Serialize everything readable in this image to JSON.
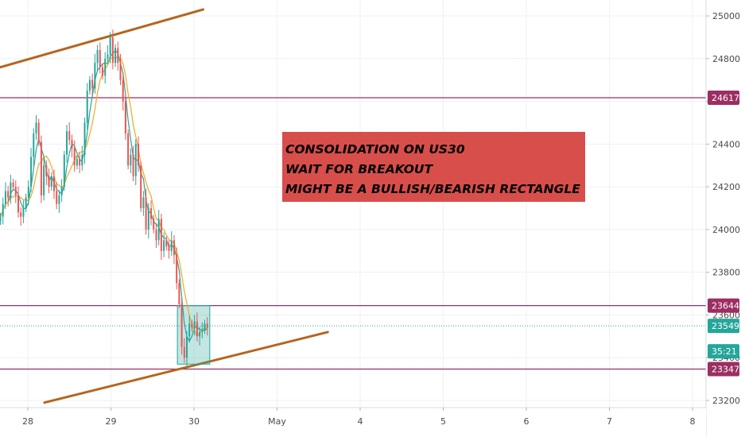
{
  "chart_data": {
    "type": "candlestick",
    "instrument": "US30",
    "x_tick_labels": [
      "28",
      "29",
      "30",
      "May",
      "4",
      "5",
      "6",
      "7",
      "8"
    ],
    "y_tick_labels": [
      23200,
      23400,
      23600,
      23800,
      24000,
      24200,
      24400,
      24600,
      24800,
      25000
    ],
    "ylim": [
      23150,
      25080
    ],
    "grid": true,
    "price_levels": [
      {
        "value": 24617,
        "label": "24617",
        "color": "#9c2e62"
      },
      {
        "value": 23644,
        "label": "23644",
        "color": "#9c2e62"
      },
      {
        "value": 23347,
        "label": "23347",
        "color": "#9c2e62"
      }
    ],
    "last_price": {
      "value": 23549,
      "label": "23549",
      "color": "#26a69a"
    },
    "countdown": {
      "label": "35:21",
      "value_level": 23430,
      "color": "#26a69a"
    },
    "channel_lines": [
      {
        "name": "upper",
        "from": {
          "x": -0.33,
          "y": 24760
        },
        "to": {
          "x": 2.11,
          "y": 25030
        },
        "color": "#b5651d"
      },
      {
        "name": "lower",
        "from": {
          "x": 0.2,
          "y": 23190
        },
        "to": {
          "x": 3.61,
          "y": 23520
        },
        "color": "#b5651d"
      }
    ],
    "rectangle": {
      "x0": 1.8,
      "x1": 2.19,
      "y0": 23370,
      "y1": 23644,
      "color": "#26a69a"
    },
    "annotation": {
      "lines": [
        "CONSOLIDATION ON US30",
        "WAIT FOR BREAKOUT",
        "MIGHT BE A BULLISH/BEARISH RECTANGLE"
      ],
      "background": "#d64541"
    },
    "colors": {
      "up": "#26a69a",
      "down": "#ef5350",
      "ma_fast": "#26a69a",
      "ma_slow": "#f5a623"
    },
    "candles_close": [
      24060,
      24120,
      24180,
      24150,
      24220,
      24200,
      24160,
      24080,
      24060,
      24100,
      24150,
      24200,
      24340,
      24450,
      24500,
      24410,
      24160,
      24300,
      24250,
      24200,
      24250,
      24180,
      24120,
      24160,
      24200,
      24350,
      24460,
      24420,
      24380,
      24300,
      24330,
      24300,
      24350,
      24500,
      24650,
      24700,
      24660,
      24780,
      24840,
      24760,
      24720,
      24800,
      24820,
      24900,
      24780,
      24850,
      24780,
      24700,
      24600,
      24450,
      24300,
      24350,
      24250,
      24400,
      24300,
      24100,
      24150,
      24000,
      24100,
      24050,
      24000,
      23950,
      24050,
      23900,
      23950,
      23920,
      23900,
      23950,
      23880,
      23750,
      23650,
      23450,
      23400,
      23500,
      23560,
      23540,
      23570,
      23500,
      23520,
      23530,
      23560,
      23540
    ]
  }
}
